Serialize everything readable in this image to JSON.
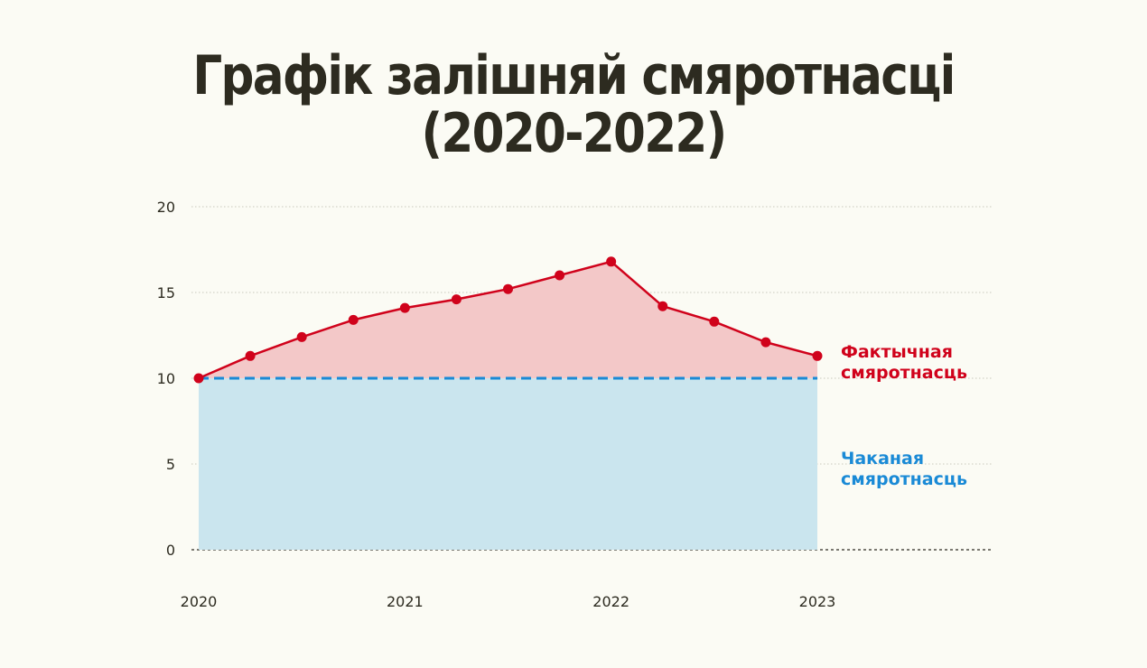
{
  "title_lines": [
    "Графік залішняй смяротнасці",
    "(2020-2022)"
  ],
  "chart_data": {
    "type": "area",
    "title": "Графік залішняй смяротнасці (2020-2022)",
    "xlabel": "",
    "ylabel": "",
    "xlim": [
      2020,
      2023.75
    ],
    "ylim": [
      0,
      20
    ],
    "y_ticks": [
      0,
      5,
      10,
      15,
      20
    ],
    "x_ticks": [
      {
        "value": 2020,
        "label": "2020"
      },
      {
        "value": 2021,
        "label": "2021"
      },
      {
        "value": 2022,
        "label": "2022"
      },
      {
        "value": 2023,
        "label": "2023"
      }
    ],
    "grid": true,
    "series": [
      {
        "name": "Фактычная смяротнасць",
        "color": "#d0021b",
        "fill": "#f3c8c8",
        "legend_lines": [
          "Фактычная",
          "смяротнасць"
        ],
        "x": [
          2020,
          2020.25,
          2020.5,
          2020.75,
          2021,
          2021.25,
          2021.5,
          2021.75,
          2022,
          2022.25,
          2022.5,
          2022.75,
          2023
        ],
        "values": [
          10,
          11.3,
          12.4,
          13.4,
          14.1,
          14.6,
          15.2,
          16.0,
          16.8,
          14.2,
          13.3,
          12.1,
          11.3
        ]
      },
      {
        "name": "Чаканая смяротнасць",
        "color": "#1a8ad6",
        "fill": "#cae5ee",
        "legend_lines": [
          "Чаканая",
          "смяротнасць"
        ],
        "x": [
          2020,
          2023
        ],
        "values": [
          10,
          10
        ]
      }
    ]
  }
}
